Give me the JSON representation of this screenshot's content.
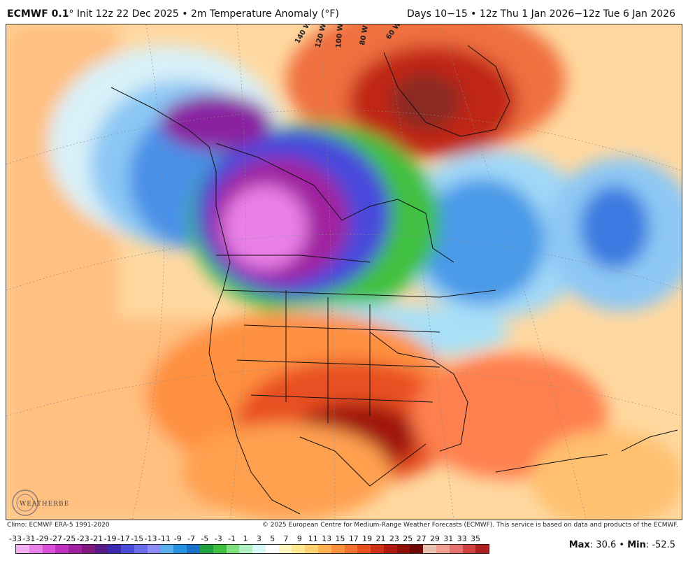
{
  "header": {
    "model": "ECMWF 0.1",
    "init_text": "Init 12z 22 Dec 2025 • 2m Temperature Anomaly (°F)",
    "valid_text": "Days 10−15 • 12z Thu 1 Jan 2026−12z Tue 6 Jan 2026"
  },
  "map": {
    "longitude_labels": [
      "140 W",
      "120 W",
      "100 W",
      "80 W",
      "60 W"
    ],
    "logo_text": "WEATHERBELL"
  },
  "footer": {
    "climo": "Climo: ECMWF ERA-5 1991-2020",
    "copyright": "© 2025 European Centre for Medium-Range Weather Forecasts (ECMWF). This service is based on data and products of the ECMWF."
  },
  "legend": {
    "labels": [
      "-33",
      "-31",
      "-29",
      "-27",
      "-25",
      "-23",
      "-21",
      "-19",
      "-17",
      "-15",
      "-13",
      "-11",
      "-9",
      "-7",
      "-5",
      "-3",
      "-1",
      "1",
      "3",
      "5",
      "7",
      "9",
      "11",
      "13",
      "15",
      "17",
      "19",
      "21",
      "23",
      "25",
      "27",
      "29",
      "31",
      "33",
      "35"
    ],
    "colors": [
      "#f0b0f0",
      "#e880e8",
      "#d850d8",
      "#c030c0",
      "#a020a0",
      "#801880",
      "#5a1a8a",
      "#3a2ab0",
      "#4a4adc",
      "#6c6cf0",
      "#8c8cf4",
      "#5ab0ec",
      "#2890e0",
      "#1a70c8",
      "#20a040",
      "#40c040",
      "#80e080",
      "#b0f0c0",
      "#d8f8f8",
      "#ffffff",
      "#fff8c0",
      "#ffe890",
      "#ffd070",
      "#ffb050",
      "#ff9040",
      "#f87030",
      "#e85020",
      "#d03018",
      "#b01810",
      "#901008",
      "#700808",
      "#e8c0b0",
      "#f0a090",
      "#e87070",
      "#d04040",
      "#b02020"
    ],
    "max_label": "Max",
    "max_value": ": 30.6 • ",
    "min_label": "Min",
    "min_value": ": -52.5"
  }
}
